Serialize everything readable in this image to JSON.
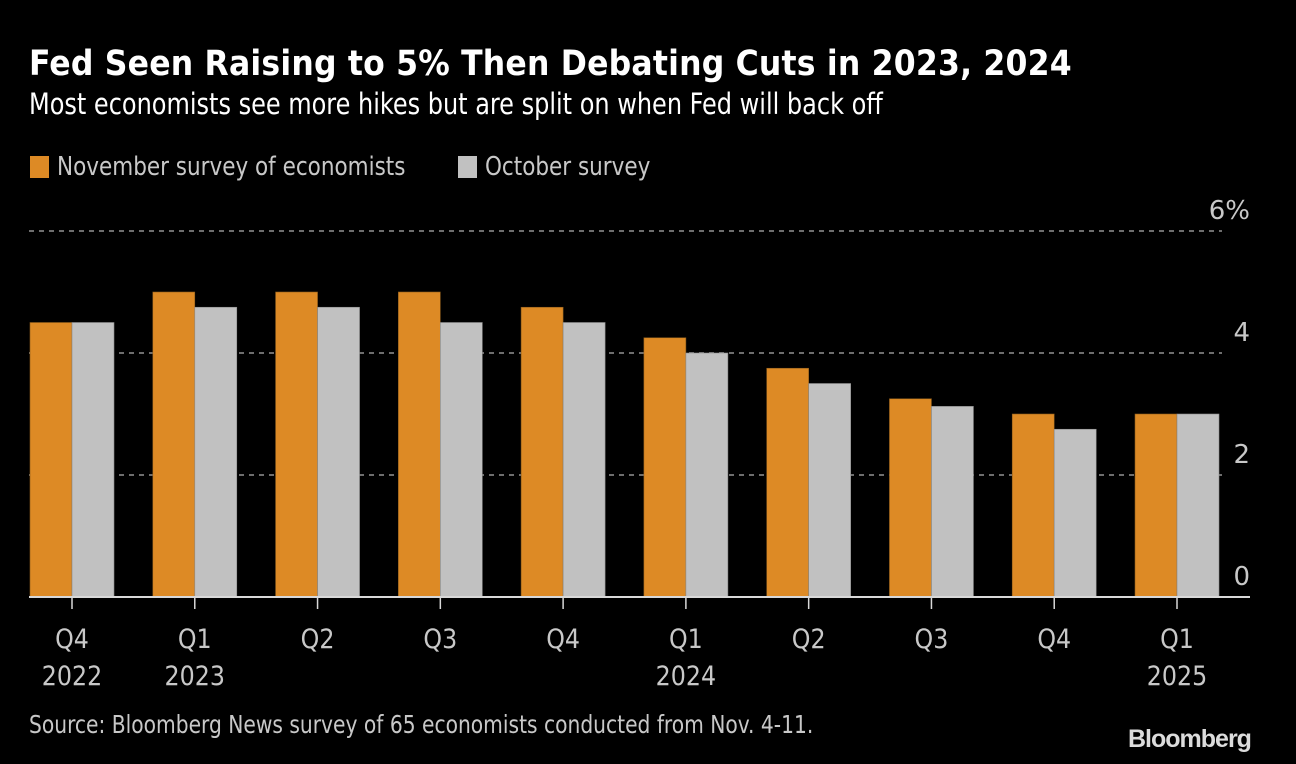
{
  "chart_data": {
    "type": "bar",
    "title": "Fed Seen Raising to 5% Then Debating Cuts in 2023, 2024",
    "subtitle": "Most economists see more hikes but are split on when Fed will back off",
    "categories": [
      "Q4 2022",
      "Q1 2023",
      "Q2 2023",
      "Q3 2023",
      "Q4 2023",
      "Q1 2024",
      "Q2 2024",
      "Q3 2024",
      "Q4 2024",
      "Q1 2025"
    ],
    "tick_labels": [
      [
        "Q4",
        "2022"
      ],
      [
        "Q1",
        "2023"
      ],
      [
        "Q2",
        ""
      ],
      [
        "Q3",
        ""
      ],
      [
        "Q4",
        ""
      ],
      [
        "Q1",
        "2024"
      ],
      [
        "Q2",
        ""
      ],
      [
        "Q3",
        ""
      ],
      [
        "Q4",
        ""
      ],
      [
        "Q1",
        "2025"
      ]
    ],
    "series": [
      {
        "name": "November survey of economists",
        "color": "#dd8a25",
        "values": [
          4.5,
          5.0,
          5.0,
          5.0,
          4.75,
          4.25,
          3.75,
          3.25,
          3.0,
          3.0
        ]
      },
      {
        "name": "October survey",
        "color": "#c1c1c1",
        "values": [
          4.5,
          4.75,
          4.75,
          4.5,
          4.5,
          4.0,
          3.5,
          3.125,
          2.75,
          3.0
        ]
      }
    ],
    "xlabel": "",
    "ylabel": "",
    "ylim": [
      0,
      6
    ],
    "yticks": [
      0,
      2,
      4,
      6
    ],
    "ytick_labels": [
      "0",
      "2",
      "4",
      "6%"
    ],
    "y_axis_side": "right",
    "grid": true,
    "legend_position": "top-left",
    "source": "Source: Bloomberg News survey of 65 economists conducted from Nov. 4-11.",
    "brand": "Bloomberg"
  }
}
